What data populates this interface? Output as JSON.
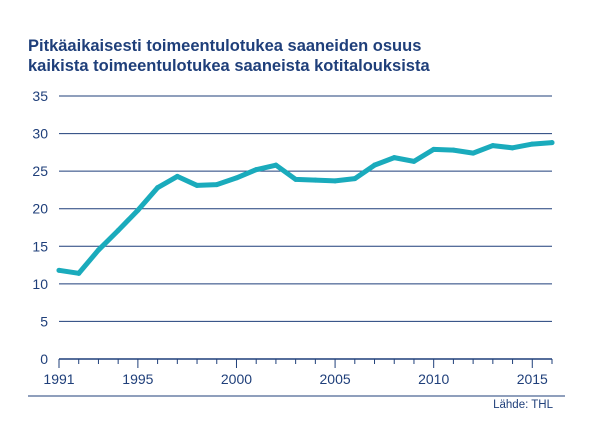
{
  "title_lines": [
    "Pitkäaikaisesti toimeentulotukea saaneiden osuus",
    "kaikista toimeentulotukea saaneista kotitalouksista"
  ],
  "source": "Lähde: THL",
  "colors": {
    "line": "#1aabbc",
    "text": "#1f3f7a",
    "grid": "#1f3f7a"
  },
  "chart_data": {
    "type": "line",
    "title": "Pitkäaikaisesti toimeentulotukea saaneiden osuus kaikista toimeentulotukea saaneista kotitalouksista",
    "xlabel": "",
    "ylabel": "",
    "ylim": [
      0,
      35
    ],
    "xlim": [
      1991,
      2016
    ],
    "yticks": [
      0,
      5,
      10,
      15,
      20,
      25,
      30,
      35
    ],
    "xticks": [
      1991,
      1995,
      2000,
      2005,
      2010,
      2015
    ],
    "grid": "horizontal",
    "x": [
      1991,
      1992,
      1993,
      1994,
      1995,
      1996,
      1997,
      1998,
      1999,
      2000,
      2001,
      2002,
      2003,
      2004,
      2005,
      2006,
      2007,
      2008,
      2009,
      2010,
      2011,
      2012,
      2013,
      2014,
      2015,
      2016
    ],
    "series": [
      {
        "values": [
          11.8,
          11.4,
          14.5,
          17.1,
          19.8,
          22.8,
          24.3,
          23.1,
          23.2,
          24.1,
          25.2,
          25.8,
          23.9,
          23.8,
          23.7,
          24.0,
          25.8,
          26.8,
          26.3,
          27.9,
          27.8,
          27.4,
          28.4,
          28.1,
          28.6,
          28.8
        ]
      }
    ]
  }
}
